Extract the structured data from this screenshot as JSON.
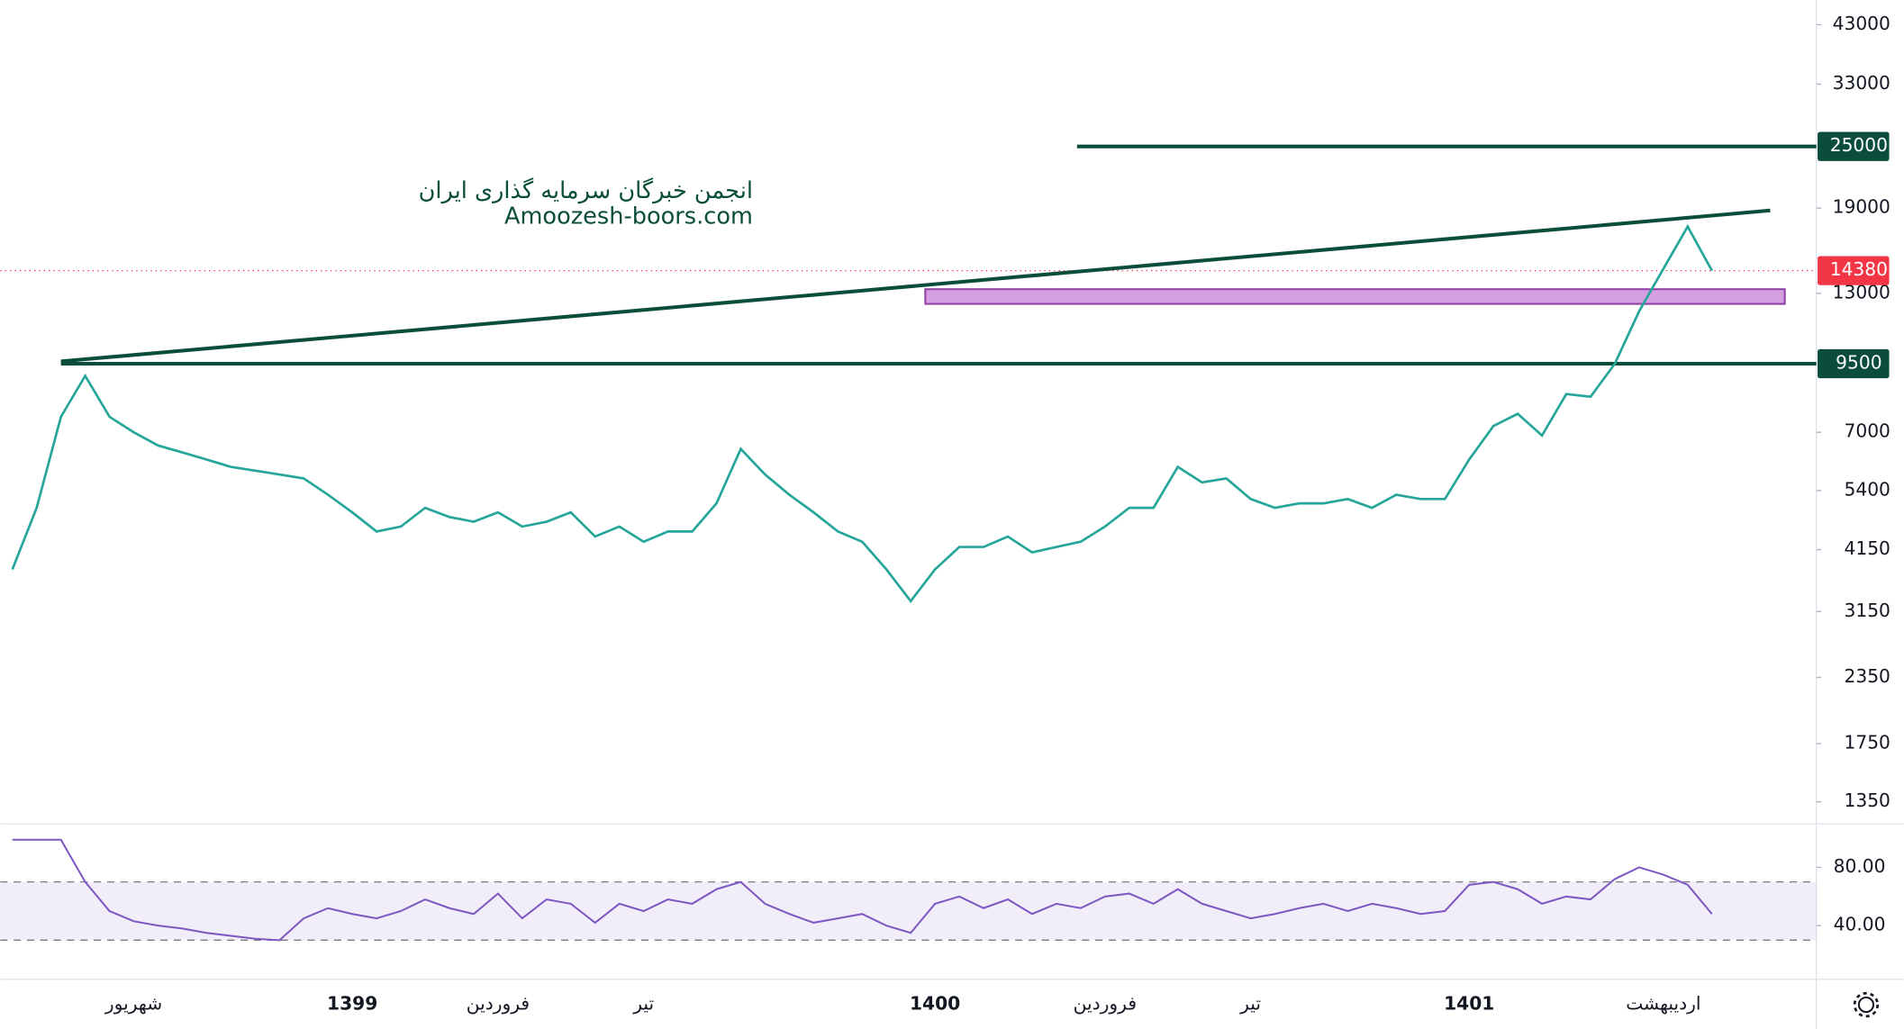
{
  "chart_data": {
    "type": "line",
    "log_scale": true,
    "color": "#26a69a",
    "categories": [
      null,
      null,
      null,
      null,
      null,
      "شهریور",
      null,
      null,
      null,
      null,
      null,
      null,
      null,
      null,
      "1399",
      null,
      null,
      null,
      null,
      null,
      "فروردین",
      null,
      null,
      null,
      null,
      null,
      "تیر",
      null,
      null,
      null,
      null,
      null,
      null,
      null,
      null,
      null,
      null,
      null,
      "1400",
      null,
      null,
      null,
      null,
      null,
      null,
      "فروردین",
      null,
      null,
      null,
      null,
      null,
      "تیر",
      null,
      null,
      null,
      null,
      null,
      null,
      null,
      null,
      "1401",
      null,
      null,
      null,
      null,
      null,
      null,
      null,
      "اردیبهشت",
      null,
      null
    ],
    "values": [
      3800,
      5000,
      7500,
      9000,
      7500,
      7000,
      6600,
      6400,
      6200,
      6000,
      5900,
      5800,
      5700,
      5300,
      4900,
      4500,
      4600,
      5000,
      4800,
      4700,
      4900,
      4600,
      4700,
      4900,
      4400,
      4600,
      4300,
      4500,
      4500,
      5100,
      6500,
      5800,
      5300,
      4900,
      4500,
      4300,
      3800,
      3300,
      3800,
      4200,
      4200,
      4400,
      4100,
      4200,
      4300,
      4600,
      5000,
      5000,
      6000,
      5600,
      5700,
      5200,
      5000,
      5100,
      5100,
      5200,
      5000,
      5300,
      5200,
      5200,
      6200,
      7200,
      7600,
      6900,
      8300,
      8200,
      9500,
      12000,
      14500,
      17500,
      14380
    ],
    "ylim": [
      1230,
      48000
    ],
    "yticks": [
      43000,
      33000,
      19000,
      13000,
      7000,
      5400,
      4150,
      3150,
      2350,
      1750,
      1350
    ],
    "levels": [
      {
        "value": 25000,
        "color": "#0b4d3c"
      },
      {
        "value": 9500,
        "color": "#0b4d3c"
      }
    ],
    "last_price": 14380,
    "last_price_color": "#f23645",
    "trendline": {
      "start": 9600,
      "end": 18800,
      "color": "#0b4d3c"
    },
    "zone": {
      "low": 12400,
      "high": 13240,
      "color": "#c77dd7"
    },
    "annotations": [
      "انجمن خبرگان سرمایه گذاری ایران",
      "Amoozesh-boors.com"
    ],
    "rsi": {
      "color": "#7e57c2",
      "values": [
        99,
        99,
        99,
        70,
        50,
        43,
        40,
        38,
        35,
        33,
        31,
        30,
        45,
        52,
        48,
        45,
        50,
        58,
        52,
        48,
        62,
        45,
        58,
        55,
        42,
        55,
        50,
        58,
        55,
        65,
        70,
        55,
        48,
        42,
        45,
        48,
        40,
        35,
        55,
        60,
        52,
        58,
        48,
        55,
        52,
        60,
        62,
        55,
        65,
        55,
        50,
        45,
        48,
        52,
        55,
        50,
        55,
        52,
        48,
        50,
        68,
        70,
        65,
        55,
        60,
        58,
        72,
        80,
        75,
        68,
        48
      ],
      "ylim": [
        4,
        109
      ],
      "yticks": [
        {
          "value": 80,
          "label": "80.00"
        },
        {
          "value": 40,
          "label": "40.00"
        }
      ],
      "bands": [
        30,
        70
      ]
    }
  }
}
